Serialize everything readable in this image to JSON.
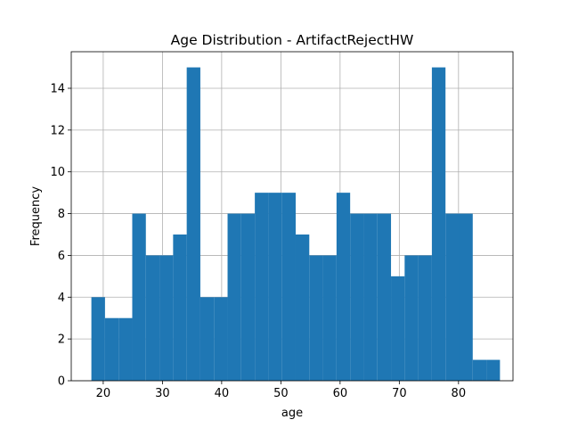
{
  "chart_data": {
    "type": "bar",
    "title": "Age Distribution - ArtifactRejectHW",
    "xlabel": "age",
    "ylabel": "Frequency",
    "bins": [
      {
        "x0": 18.0,
        "x1": 20.3,
        "count": 4
      },
      {
        "x0": 20.3,
        "x1": 22.6,
        "count": 3
      },
      {
        "x0": 22.6,
        "x1": 24.9,
        "count": 3
      },
      {
        "x0": 24.9,
        "x1": 27.2,
        "count": 8
      },
      {
        "x0": 27.2,
        "x1": 29.5,
        "count": 6
      },
      {
        "x0": 29.5,
        "x1": 31.8,
        "count": 6
      },
      {
        "x0": 31.8,
        "x1": 34.1,
        "count": 7
      },
      {
        "x0": 34.1,
        "x1": 36.4,
        "count": 15
      },
      {
        "x0": 36.4,
        "x1": 38.7,
        "count": 4
      },
      {
        "x0": 38.7,
        "x1": 41.0,
        "count": 4
      },
      {
        "x0": 41.0,
        "x1": 43.3,
        "count": 8
      },
      {
        "x0": 43.3,
        "x1": 45.6,
        "count": 8
      },
      {
        "x0": 45.6,
        "x1": 47.9,
        "count": 9
      },
      {
        "x0": 47.9,
        "x1": 50.2,
        "count": 9
      },
      {
        "x0": 50.2,
        "x1": 52.5,
        "count": 9
      },
      {
        "x0": 52.5,
        "x1": 54.8,
        "count": 7
      },
      {
        "x0": 54.8,
        "x1": 57.1,
        "count": 6
      },
      {
        "x0": 57.1,
        "x1": 59.4,
        "count": 6
      },
      {
        "x0": 59.4,
        "x1": 61.7,
        "count": 9
      },
      {
        "x0": 61.7,
        "x1": 64.0,
        "count": 8
      },
      {
        "x0": 64.0,
        "x1": 66.3,
        "count": 8
      },
      {
        "x0": 66.3,
        "x1": 68.6,
        "count": 8
      },
      {
        "x0": 68.6,
        "x1": 70.9,
        "count": 5
      },
      {
        "x0": 70.9,
        "x1": 73.2,
        "count": 6
      },
      {
        "x0": 73.2,
        "x1": 75.5,
        "count": 6
      },
      {
        "x0": 75.5,
        "x1": 77.8,
        "count": 15
      },
      {
        "x0": 77.8,
        "x1": 80.1,
        "count": 8
      },
      {
        "x0": 80.1,
        "x1": 82.4,
        "count": 8
      },
      {
        "x0": 82.4,
        "x1": 84.7,
        "count": 1
      },
      {
        "x0": 84.7,
        "x1": 87.0,
        "count": 1
      }
    ],
    "xlim": [
      14.6,
      89.2
    ],
    "ylim": [
      0,
      15.75
    ],
    "xticks": [
      20,
      30,
      40,
      50,
      60,
      70,
      80
    ],
    "yticks": [
      0,
      2,
      4,
      6,
      8,
      10,
      12,
      14
    ],
    "grid": true,
    "bar_color": "#1f77b4"
  }
}
